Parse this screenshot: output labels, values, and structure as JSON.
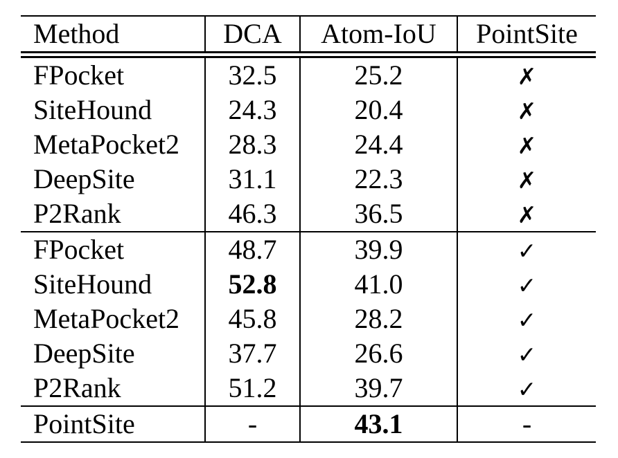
{
  "page": {
    "background": "#ffffff",
    "text_color": "#000000"
  },
  "table": {
    "headers": [
      "Method",
      "DCA",
      "Atom-IoU",
      "PointSite"
    ],
    "marks": {
      "cross": "✗",
      "check": "✓",
      "dash": "-"
    },
    "groups": [
      {
        "rows": [
          {
            "method": "FPocket",
            "dca": "32.5",
            "dca_bold": false,
            "atom_iou": "25.2",
            "atom_iou_bold": false,
            "pointsite": "cross"
          },
          {
            "method": "SiteHound",
            "dca": "24.3",
            "dca_bold": false,
            "atom_iou": "20.4",
            "atom_iou_bold": false,
            "pointsite": "cross"
          },
          {
            "method": "MetaPocket2",
            "dca": "28.3",
            "dca_bold": false,
            "atom_iou": "24.4",
            "atom_iou_bold": false,
            "pointsite": "cross"
          },
          {
            "method": "DeepSite",
            "dca": "31.1",
            "dca_bold": false,
            "atom_iou": "22.3",
            "atom_iou_bold": false,
            "pointsite": "cross"
          },
          {
            "method": "P2Rank",
            "dca": "46.3",
            "dca_bold": false,
            "atom_iou": "36.5",
            "atom_iou_bold": false,
            "pointsite": "cross"
          }
        ]
      },
      {
        "rows": [
          {
            "method": "FPocket",
            "dca": "48.7",
            "dca_bold": false,
            "atom_iou": "39.9",
            "atom_iou_bold": false,
            "pointsite": "check"
          },
          {
            "method": "SiteHound",
            "dca": "52.8",
            "dca_bold": true,
            "atom_iou": "41.0",
            "atom_iou_bold": false,
            "pointsite": "check"
          },
          {
            "method": "MetaPocket2",
            "dca": "45.8",
            "dca_bold": false,
            "atom_iou": "28.2",
            "atom_iou_bold": false,
            "pointsite": "check"
          },
          {
            "method": "DeepSite",
            "dca": "37.7",
            "dca_bold": false,
            "atom_iou": "26.6",
            "atom_iou_bold": false,
            "pointsite": "check"
          },
          {
            "method": "P2Rank",
            "dca": "51.2",
            "dca_bold": false,
            "atom_iou": "39.7",
            "atom_iou_bold": false,
            "pointsite": "check"
          }
        ]
      },
      {
        "rows": [
          {
            "method": "PointSite",
            "dca": "-",
            "dca_bold": false,
            "atom_iou": "43.1",
            "atom_iou_bold": true,
            "pointsite": "dash"
          }
        ]
      }
    ]
  }
}
